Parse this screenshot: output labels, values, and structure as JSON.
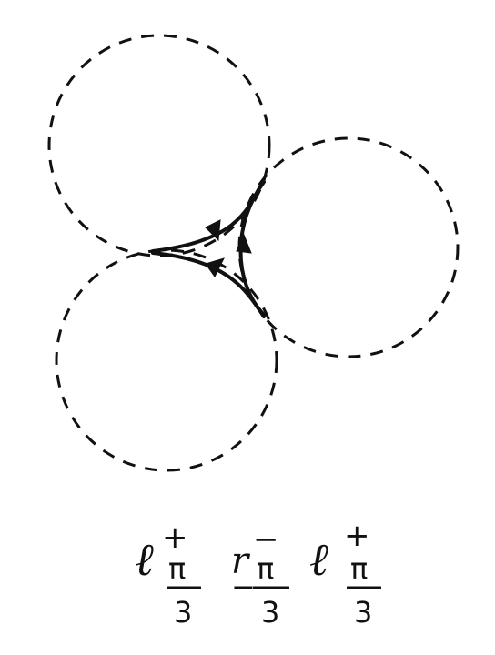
{
  "diagram": {
    "label": {
      "term1": {
        "base": "ℓ",
        "sup": "+",
        "numerator": "π",
        "denominator": "3",
        "sign": ""
      },
      "term2": {
        "base": "r",
        "sup": "−",
        "numerator": "π",
        "denominator": "3",
        "sign": "−"
      },
      "term3": {
        "base": "ℓ",
        "sup": "+",
        "numerator": "π",
        "denominator": "3",
        "sign": ""
      }
    }
  }
}
